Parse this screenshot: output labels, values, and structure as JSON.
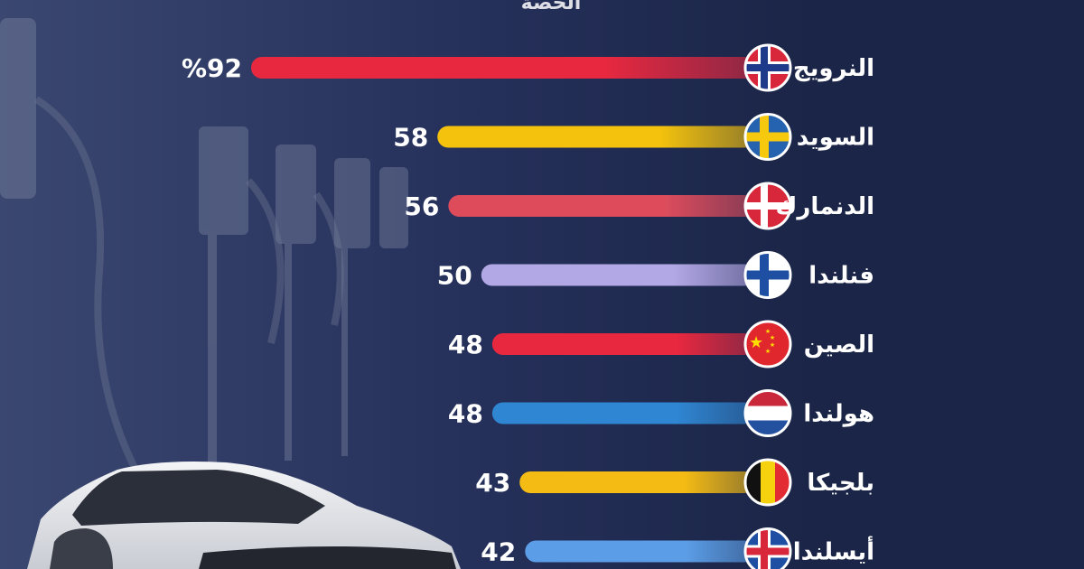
{
  "chart_data": {
    "type": "bar",
    "title": "الحصة",
    "unit_suffix": "%",
    "categories": [
      "النرويج",
      "السويد",
      "الدنمارك",
      "فنلندا",
      "الصين",
      "هولندا",
      "بلجيكا",
      "أيسلندا"
    ],
    "values": [
      92,
      58,
      56,
      50,
      48,
      48,
      43,
      42
    ],
    "value_labels": [
      "%92",
      "58",
      "56",
      "50",
      "48",
      "48",
      "43",
      "42"
    ],
    "bar_colors": [
      "#e8283f",
      "#f4c20d",
      "#de4c5c",
      "#b3a8e6",
      "#e8283f",
      "#2f86d2",
      "#f4bb14",
      "#5b9de6"
    ],
    "flags": [
      "norway-flag",
      "sweden-flag",
      "denmark-flag",
      "finland-flag",
      "china-flag",
      "netherlands-flag",
      "belgium-flag",
      "iceland-flag"
    ]
  }
}
